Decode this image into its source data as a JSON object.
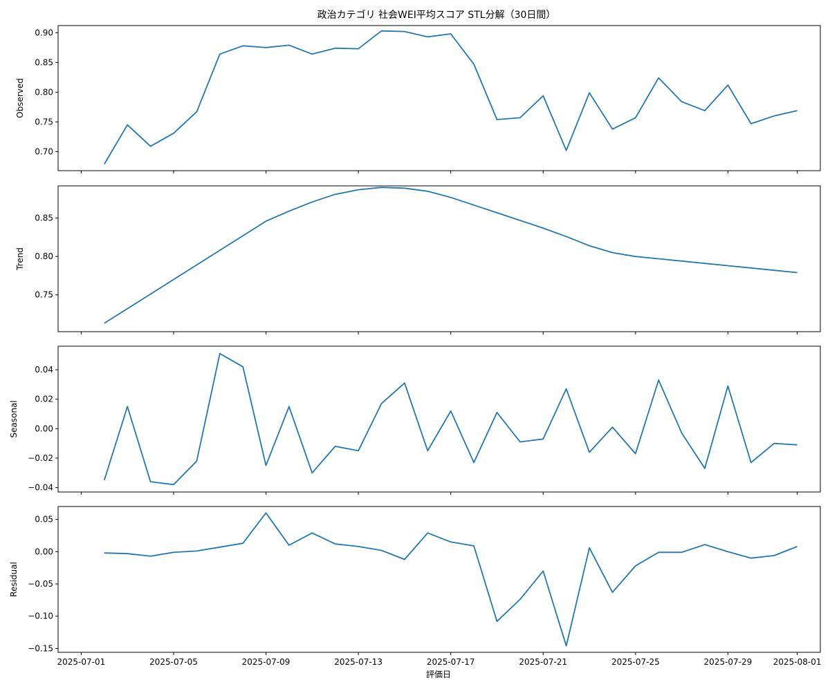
{
  "chart_data": {
    "type": "line",
    "title": "政治カテゴリ 社会WEI平均スコア STL分解（30日間）",
    "xlabel": "評価日",
    "line_color": "#1f77b4",
    "x": [
      "2025-07-02",
      "2025-07-03",
      "2025-07-04",
      "2025-07-05",
      "2025-07-06",
      "2025-07-07",
      "2025-07-08",
      "2025-07-09",
      "2025-07-10",
      "2025-07-11",
      "2025-07-12",
      "2025-07-13",
      "2025-07-14",
      "2025-07-15",
      "2025-07-16",
      "2025-07-17",
      "2025-07-18",
      "2025-07-19",
      "2025-07-20",
      "2025-07-21",
      "2025-07-22",
      "2025-07-23",
      "2025-07-24",
      "2025-07-25",
      "2025-07-26",
      "2025-07-27",
      "2025-07-28",
      "2025-07-29",
      "2025-07-30",
      "2025-07-31",
      "2025-08-01"
    ],
    "x_ticks": [
      "2025-07-01",
      "2025-07-05",
      "2025-07-09",
      "2025-07-13",
      "2025-07-17",
      "2025-07-21",
      "2025-07-25",
      "2025-07-29",
      "2025-08-01"
    ],
    "x_range": [
      "2025-06-30",
      "2025-08-02"
    ],
    "panels": [
      {
        "name": "Observed",
        "ylabel": "Observed",
        "ylim": [
          0.668,
          0.912
        ],
        "y_ticks": [
          0.7,
          0.75,
          0.8,
          0.85,
          0.9
        ],
        "tick_labels": [
          "0.70",
          "0.75",
          "0.80",
          "0.85",
          "0.90"
        ],
        "values": [
          0.679,
          0.745,
          0.709,
          0.731,
          0.767,
          0.864,
          0.878,
          0.875,
          0.879,
          0.864,
          0.874,
          0.873,
          0.903,
          0.902,
          0.893,
          0.898,
          0.847,
          0.754,
          0.757,
          0.794,
          0.702,
          0.799,
          0.738,
          0.757,
          0.824,
          0.784,
          0.769,
          0.812,
          0.747,
          0.76,
          0.769
        ]
      },
      {
        "name": "Trend",
        "ylabel": "Trend",
        "ylim": [
          0.702,
          0.892
        ],
        "y_ticks": [
          0.75,
          0.8,
          0.85
        ],
        "tick_labels": [
          "0.75",
          "0.80",
          "0.85"
        ],
        "values": [
          0.713,
          0.732,
          0.751,
          0.77,
          0.789,
          0.808,
          0.827,
          0.846,
          0.859,
          0.871,
          0.881,
          0.887,
          0.89,
          0.889,
          0.885,
          0.877,
          0.867,
          0.857,
          0.847,
          0.837,
          0.826,
          0.814,
          0.805,
          0.8,
          0.797,
          0.794,
          0.791,
          0.788,
          0.785,
          0.782,
          0.779
        ]
      },
      {
        "name": "Seasonal",
        "ylabel": "Seasonal",
        "ylim": [
          -0.043,
          0.056
        ],
        "y_ticks": [
          -0.04,
          -0.02,
          0.0,
          0.02,
          0.04
        ],
        "tick_labels": [
          "−0.04",
          "−0.02",
          "0.00",
          "0.02",
          "0.04"
        ],
        "values": [
          -0.035,
          0.015,
          -0.036,
          -0.038,
          -0.022,
          0.051,
          0.042,
          -0.025,
          0.015,
          -0.03,
          -0.012,
          -0.015,
          0.017,
          0.031,
          -0.015,
          0.012,
          -0.023,
          0.011,
          -0.009,
          -0.007,
          0.027,
          -0.016,
          0.001,
          -0.017,
          0.033,
          -0.003,
          -0.027,
          0.029,
          -0.023,
          -0.01,
          -0.011
        ]
      },
      {
        "name": "Residual",
        "ylabel": "Residual",
        "ylim": [
          -0.156,
          0.07
        ],
        "y_ticks": [
          -0.15,
          -0.1,
          -0.05,
          0.0,
          0.05
        ],
        "tick_labels": [
          "−0.15",
          "−0.10",
          "−0.05",
          "0.00",
          "0.05"
        ],
        "values": [
          -0.002,
          -0.003,
          -0.007,
          -0.001,
          0.001,
          0.007,
          0.013,
          0.06,
          0.01,
          0.029,
          0.012,
          0.008,
          0.002,
          -0.012,
          0.029,
          0.015,
          0.009,
          -0.108,
          -0.074,
          -0.03,
          -0.146,
          0.006,
          -0.063,
          -0.022,
          -0.001,
          -0.001,
          0.011,
          0.0,
          -0.01,
          -0.006,
          0.008
        ]
      }
    ]
  }
}
